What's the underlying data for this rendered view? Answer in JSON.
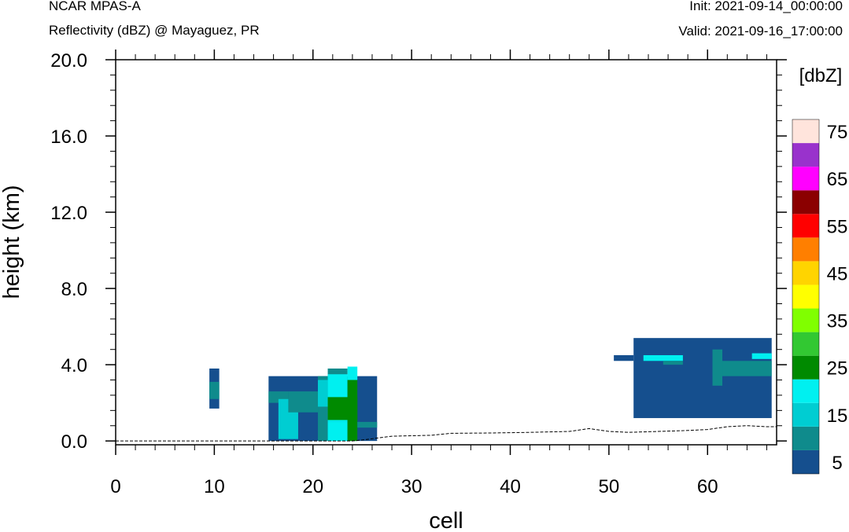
{
  "header": {
    "title": "NCAR MPAS-A",
    "subtitle": "Reflectivity (dBZ) @ Mayaguez, PR",
    "init": "Init: 2021-09-14_00:00:00",
    "valid": "Valid: 2021-09-16_17:00:00"
  },
  "chart_data": {
    "type": "heatmap",
    "xlabel": "cell",
    "ylabel": "height (km)",
    "xlim": [
      0,
      67
    ],
    "ylim": [
      -0.2,
      20
    ],
    "xticks": [
      0,
      10,
      20,
      30,
      40,
      50,
      60
    ],
    "yticks": [
      0,
      4,
      8,
      12,
      16,
      20
    ],
    "ytick_labels": [
      "0.0",
      "4.0",
      "8.0",
      "12.0",
      "16.0",
      "20.0"
    ],
    "colorbar": {
      "title": "[dbZ]",
      "levels": [
        5,
        10,
        15,
        20,
        25,
        30,
        35,
        40,
        45,
        50,
        55,
        60,
        65,
        70,
        75
      ],
      "labels": [
        5,
        15,
        25,
        35,
        45,
        55,
        65,
        75
      ],
      "colors": [
        "#154f8e",
        "#0f8b8c",
        "#00cdd2",
        "#00f0f0",
        "#008a00",
        "#32c832",
        "#80ff00",
        "#ffff00",
        "#ffd400",
        "#ff7f00",
        "#ff0000",
        "#8b0000",
        "#ff00ff",
        "#9932cc",
        "#ffe4dc"
      ]
    },
    "terrain": [
      [
        0,
        0
      ],
      [
        10,
        0
      ],
      [
        15,
        0
      ],
      [
        24,
        0
      ],
      [
        25,
        0.05
      ],
      [
        28,
        0.25
      ],
      [
        32,
        0.3
      ],
      [
        34,
        0.4
      ],
      [
        38,
        0.42
      ],
      [
        42,
        0.45
      ],
      [
        46,
        0.5
      ],
      [
        48,
        0.65
      ],
      [
        50,
        0.5
      ],
      [
        52,
        0.45
      ],
      [
        55,
        0.5
      ],
      [
        58,
        0.55
      ],
      [
        60,
        0.6
      ],
      [
        62,
        0.75
      ],
      [
        64,
        0.8
      ],
      [
        66,
        0.75
      ],
      [
        67,
        0.75
      ]
    ],
    "cells": [
      {
        "x0": 9.5,
        "x1": 10.5,
        "y0": 1.7,
        "y1": 3.8,
        "dbz": 5
      },
      {
        "x0": 9.5,
        "x1": 10.5,
        "y0": 2.2,
        "y1": 3.1,
        "dbz": 10
      },
      {
        "x0": 15.5,
        "x1": 26.5,
        "y0": 0.0,
        "y1": 3.4,
        "dbz": 5
      },
      {
        "x0": 15.5,
        "x1": 17.5,
        "y0": 2.0,
        "y1": 2.6,
        "dbz": 10
      },
      {
        "x0": 16.5,
        "x1": 18.5,
        "y0": 0.1,
        "y1": 2.2,
        "dbz": 15
      },
      {
        "x0": 17.5,
        "x1": 20.5,
        "y0": 1.5,
        "y1": 2.6,
        "dbz": 10
      },
      {
        "x0": 20.5,
        "x1": 21.5,
        "y0": 0.0,
        "y1": 3.4,
        "dbz": 10
      },
      {
        "x0": 20.5,
        "x1": 21.5,
        "y0": 1.8,
        "y1": 3.2,
        "dbz": 15
      },
      {
        "x0": 21.5,
        "x1": 23.5,
        "y0": 3.3,
        "y1": 3.8,
        "dbz": 10
      },
      {
        "x0": 21.5,
        "x1": 23.5,
        "y0": 1.0,
        "y1": 3.5,
        "dbz": 20
      },
      {
        "x0": 21.5,
        "x1": 23.5,
        "y0": 0.0,
        "y1": 1.0,
        "dbz": 20
      },
      {
        "x0": 21.5,
        "x1": 24.5,
        "y0": 1.1,
        "y1": 2.3,
        "dbz": 25
      },
      {
        "x0": 23.5,
        "x1": 24.5,
        "y0": 0.0,
        "y1": 3.2,
        "dbz": 25
      },
      {
        "x0": 23.5,
        "x1": 24.5,
        "y0": 3.2,
        "y1": 3.9,
        "dbz": 20
      },
      {
        "x0": 24.5,
        "x1": 26.5,
        "y0": 0.7,
        "y1": 1.0,
        "dbz": 10
      },
      {
        "x0": 52.5,
        "x1": 66.5,
        "y0": 1.2,
        "y1": 5.4,
        "dbz": 5
      },
      {
        "x0": 50.5,
        "x1": 52.5,
        "y0": 4.2,
        "y1": 4.5,
        "dbz": 5
      },
      {
        "x0": 53.5,
        "x1": 57.5,
        "y0": 4.2,
        "y1": 4.5,
        "dbz": 20
      },
      {
        "x0": 55.5,
        "x1": 57.5,
        "y0": 4.0,
        "y1": 4.2,
        "dbz": 10
      },
      {
        "x0": 60.5,
        "x1": 66.5,
        "y0": 3.4,
        "y1": 4.2,
        "dbz": 10
      },
      {
        "x0": 60.5,
        "x1": 61.5,
        "y0": 2.9,
        "y1": 4.8,
        "dbz": 10
      },
      {
        "x0": 64.5,
        "x1": 66.5,
        "y0": 4.3,
        "y1": 4.6,
        "dbz": 20
      }
    ]
  }
}
